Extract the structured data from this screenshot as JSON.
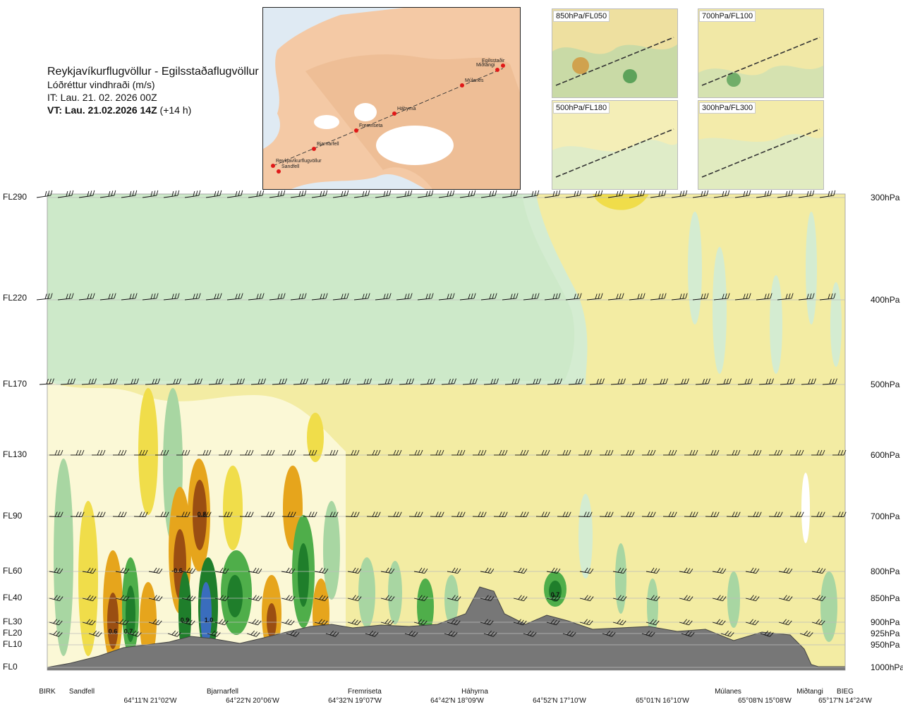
{
  "header": {
    "route": "Reykjavíkurflugvöllur - Egilsstaðaflugvöllur",
    "parameter": "Lóðréttur vindhraði (m/s)",
    "issue_time": "IT: Lau. 21. 02. 2026 00Z",
    "valid_time_bold": "VT: Lau. 21.02.2026 14Z",
    "valid_time_offset": "(+14 h)"
  },
  "map": {
    "waypoints": [
      "Reykjavíkurflugvöllur",
      "Sandfell",
      "Bjarnarfell",
      "Fremriseta",
      "Háhyrna",
      "Múlanes",
      "Miðtangi",
      "Egilsstaðir"
    ]
  },
  "thumbnails": [
    {
      "label": "850hPa/FL050"
    },
    {
      "label": "700hPa/FL100"
    },
    {
      "label": "500hPa/FL180"
    },
    {
      "label": "300hPa/FL300"
    }
  ],
  "colors": {
    "strong_down": "#1f7e2b",
    "down": "#4fae4a",
    "weak_down": "#a8d6a2",
    "very_weak_down": "#d4ecd1",
    "neutral": "#fbf8d6",
    "weak_up": "#f3eca3",
    "up": "#f0dd4a",
    "strong_up": "#e6a51c",
    "very_strong_up": "#9a4e12",
    "blue": "#3a6dbd",
    "terrain": "#777777"
  },
  "chart_data": {
    "type": "heatmap",
    "title": "Lóðréttur vindhraði (m/s)",
    "y_left_labels": [
      "FL290",
      "FL220",
      "FL170",
      "FL130",
      "FL90",
      "FL60",
      "FL40",
      "FL30",
      "FL20",
      "FL10",
      "FL0"
    ],
    "y_right_labels": [
      "300hPa",
      "400hPa",
      "500hPa",
      "600hPa",
      "700hPa",
      "800hPa",
      "850hPa",
      "900hPa",
      "925hPa",
      "950hPa",
      "1000hPa"
    ],
    "x_locations": [
      "BIRK",
      "Sandfell",
      "Bjarnarfell",
      "Fremriseta",
      "Háhyrna",
      "Múlanes",
      "Miðtangi",
      "BIEG"
    ],
    "x_coordinates": [
      "64°11'N 21°02'W",
      "64°22'N 20°06'W",
      "64°32'N 19°07'W",
      "64°42'N 18°09'W",
      "64°52'N 17°10'W",
      "65°01'N 16°10'W",
      "65°08'N 15°08'W",
      "65°17'N 14°24'W"
    ],
    "annotations": [
      {
        "label": "0.6",
        "sign": "up"
      },
      {
        "label": "0.7",
        "sign": "up"
      },
      {
        "label": "-0.6",
        "sign": "up"
      },
      {
        "label": "0.8",
        "sign": "up"
      },
      {
        "label": "0.9",
        "sign": "down"
      },
      {
        "label": "1.0",
        "sign": "down"
      },
      {
        "label": "0.7",
        "sign": "down"
      }
    ],
    "grid": true
  }
}
